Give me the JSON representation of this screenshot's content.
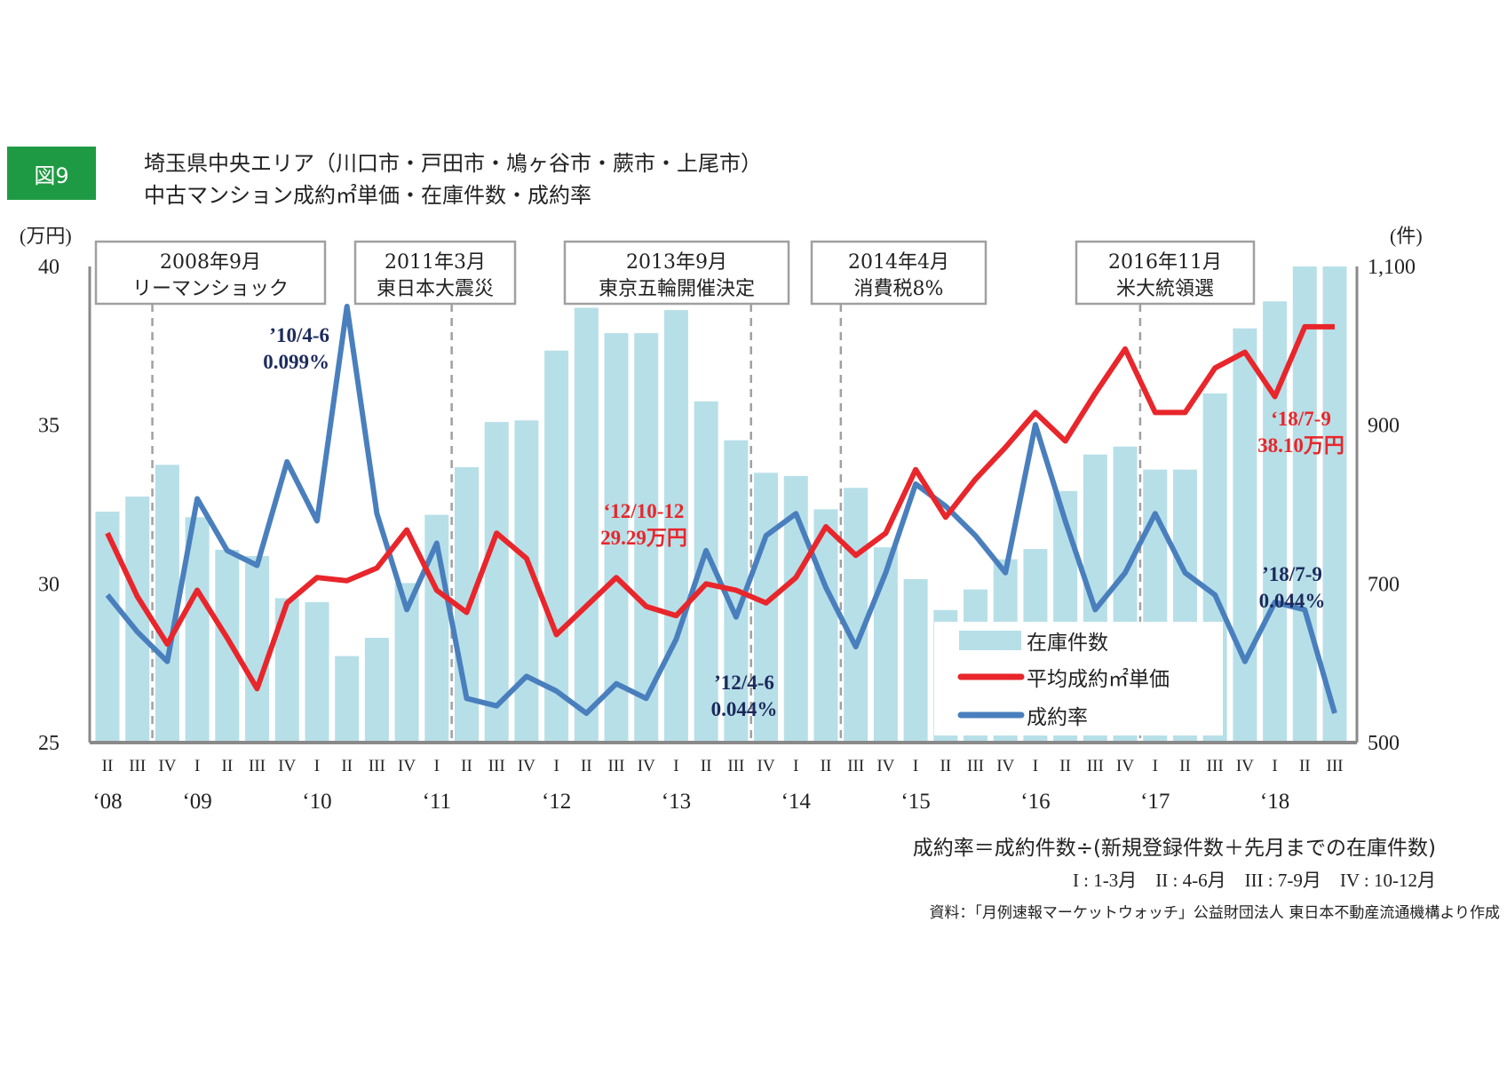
{
  "figure_label": "図9",
  "title_line1": "埼玉県中央エリア（川口市・戸田市・鳩ヶ谷市・蕨市・上尾市）",
  "title_line2": "中古マンション成約㎡単価・在庫件数・成約率",
  "notes": {
    "formula": "成約率＝成約件数÷(新規登録件数＋先月までの在庫件数)",
    "quarters": "I : 1-3月　II : 4-6月　III : 7-9月　IV : 10-12月",
    "source": "資料：「月例速報マーケットウォッチ」公益財団法人 東日本不動産流通機構より作成"
  },
  "colors": {
    "bar": "#b7dfe8",
    "price": "#e8262b",
    "rate": "#4a7fbd",
    "rate_label": "#1c2a5c",
    "badge": "#1f9a44"
  },
  "chart_data": {
    "type": "bar+line",
    "title": "埼玉県中央エリア 中古マンション成約㎡単価・在庫件数・成約率",
    "y_left": {
      "unit": "(万円)",
      "ticks": [
        "40",
        "35",
        "30",
        "25"
      ],
      "range": [
        25,
        40
      ]
    },
    "y_right": {
      "unit": "(件)",
      "ticks": [
        "1,100",
        "900",
        "700",
        "500"
      ],
      "range": [
        500,
        1100
      ]
    },
    "quarter_labels": [
      "II",
      "III",
      "IV",
      "I",
      "II",
      "III",
      "IV",
      "I",
      "II",
      "III",
      "IV",
      "I",
      "II",
      "III",
      "IV",
      "I",
      "II",
      "III",
      "IV",
      "I",
      "II",
      "III",
      "IV",
      "I",
      "II",
      "III",
      "IV",
      "I",
      "II",
      "III",
      "IV",
      "I",
      "II",
      "III",
      "IV",
      "I",
      "II",
      "III",
      "IV",
      "I",
      "II",
      "III"
    ],
    "year_labels": [
      {
        "label": "‘08",
        "index": 0
      },
      {
        "label": "‘09",
        "index": 3
      },
      {
        "label": "‘10",
        "index": 7
      },
      {
        "label": "‘11",
        "index": 11
      },
      {
        "label": "‘12",
        "index": 15
      },
      {
        "label": "‘13",
        "index": 19
      },
      {
        "label": "‘14",
        "index": 23
      },
      {
        "label": "‘15",
        "index": 27
      },
      {
        "label": "‘16",
        "index": 31
      },
      {
        "label": "‘17",
        "index": 35
      },
      {
        "label": "‘18",
        "index": 39
      }
    ],
    "series": [
      {
        "name": "在庫件数",
        "type": "bar",
        "axis": "right",
        "values": [
          791,
          810,
          850,
          784,
          743,
          735,
          682,
          677,
          609,
          632,
          701,
          787,
          847,
          904,
          906,
          994,
          1048,
          1016,
          1016,
          1045,
          930,
          881,
          840,
          836,
          794,
          821,
          746,
          706,
          667,
          693,
          731,
          744,
          817,
          863,
          873,
          844,
          844,
          940,
          1022,
          1056,
          1100,
          1100
        ]
      },
      {
        "name": "平均成約㎡単価",
        "type": "line",
        "axis": "left",
        "values": [
          31.6,
          29.6,
          28.1,
          29.8,
          28.3,
          26.7,
          29.4,
          30.2,
          30.1,
          30.5,
          31.7,
          29.8,
          29.1,
          31.6,
          30.8,
          28.4,
          29.3,
          30.2,
          29.29,
          29.0,
          30.0,
          29.8,
          29.4,
          30.2,
          31.8,
          30.9,
          31.6,
          33.6,
          32.1,
          33.3,
          34.3,
          35.4,
          34.5,
          36.0,
          37.4,
          35.4,
          35.4,
          36.8,
          37.3,
          35.9,
          38.1,
          38.1
        ]
      },
      {
        "name": "成約率",
        "type": "line",
        "axis": "none",
        "unit": "%",
        "values": [
          0.06,
          0.055,
          0.051,
          0.073,
          0.066,
          0.064,
          0.078,
          0.07,
          0.099,
          0.071,
          0.058,
          0.067,
          0.046,
          0.045,
          0.049,
          0.047,
          0.044,
          0.048,
          0.046,
          0.054,
          0.066,
          0.057,
          0.068,
          0.071,
          0.061,
          0.053,
          0.063,
          0.075,
          0.072,
          0.068,
          0.063,
          0.083,
          0.07,
          0.058,
          0.063,
          0.071,
          0.063,
          0.06,
          0.051,
          0.059,
          0.058,
          0.044
        ]
      }
    ],
    "legend": {
      "position": "bottom-right",
      "items": [
        "在庫件数",
        "平均成約㎡単価",
        "成約率"
      ]
    },
    "events": [
      {
        "date": "2008年9月",
        "label": "リーマンショック",
        "after_index": 1
      },
      {
        "date": "2011年3月",
        "label": "東日本大震災",
        "after_index": 11
      },
      {
        "date": "2013年9月",
        "label": "東京五輪開催決定",
        "after_index": 21
      },
      {
        "date": "2014年4月",
        "label": "消費税8%",
        "after_index": 24
      },
      {
        "date": "2016年11月",
        "label": "米大統領選",
        "after_index": 34
      }
    ],
    "annotations": [
      {
        "series": "成約率",
        "line1": "’10/4-6",
        "line2": "0.099%"
      },
      {
        "series": "平均成約㎡単価",
        "line1": "‘12/10-12",
        "line2": "29.29万円"
      },
      {
        "series": "成約率",
        "line1": "’12/4-6",
        "line2": "0.044%"
      },
      {
        "series": "平均成約㎡単価",
        "line1": "‘18/7-9",
        "line2": "38.10万円"
      },
      {
        "series": "成約率",
        "line1": "’18/7-9",
        "line2": "0.044%"
      }
    ]
  }
}
